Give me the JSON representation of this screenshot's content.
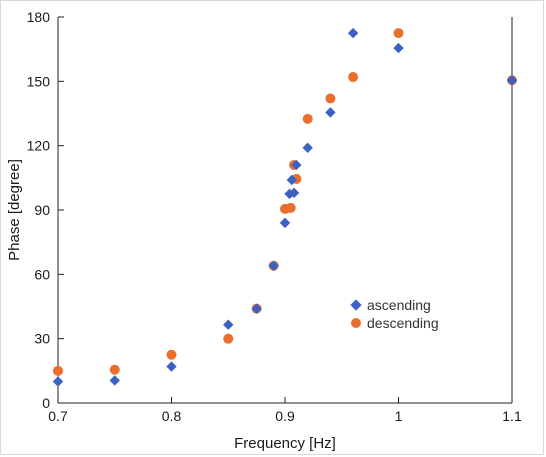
{
  "chart_data": {
    "type": "scatter",
    "title": "",
    "xlabel": "Frequency [Hz]",
    "ylabel": "Phase [degree]",
    "xlim": [
      0.7,
      1.1
    ],
    "ylim": [
      0,
      180
    ],
    "xticks": [
      0.7,
      0.8,
      0.9,
      1.0,
      1.1
    ],
    "xtick_labels": [
      "0.7",
      "0.8",
      "0.9",
      "1",
      "1.1"
    ],
    "yticks": [
      0,
      30,
      60,
      90,
      120,
      150,
      180
    ],
    "yticklabels": [
      "0",
      "30",
      "60",
      "90",
      "120",
      "150",
      "180"
    ],
    "grid": false,
    "legend_position": "center-right",
    "series": [
      {
        "name": "ascending",
        "marker": "diamond",
        "color": "#3b62c3",
        "x": [
          0.7,
          0.75,
          0.8,
          0.85,
          0.875,
          0.89,
          0.9,
          0.904,
          0.906,
          0.908,
          0.91,
          0.92,
          0.94,
          0.96,
          1.0,
          1.1
        ],
        "y": [
          10,
          10.5,
          17,
          36.5,
          44,
          64,
          84,
          97.5,
          104,
          98,
          111,
          119,
          135.5,
          172.5,
          165.5,
          150.5
        ]
      },
      {
        "name": "descending",
        "marker": "circle",
        "color": "#ea6f2c",
        "x": [
          0.7,
          0.75,
          0.8,
          0.85,
          0.875,
          0.89,
          0.9,
          0.905,
          0.908,
          0.91,
          0.92,
          0.94,
          0.96,
          1.0,
          1.1
        ],
        "y": [
          15,
          15.5,
          22.5,
          30,
          44,
          64,
          90.5,
          91,
          111,
          104.5,
          132.5,
          142,
          152,
          172.5,
          150.5
        ]
      }
    ]
  }
}
